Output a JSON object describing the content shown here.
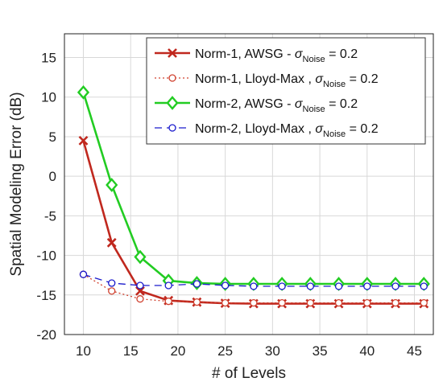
{
  "chart_data": {
    "type": "line",
    "xlabel": "# of Levels",
    "ylabel": "Spatial Modeling Error (dB)",
    "xlim": [
      8,
      47
    ],
    "ylim": [
      -20,
      18
    ],
    "xticks": [
      10,
      15,
      20,
      25,
      30,
      35,
      40,
      45
    ],
    "yticks": [
      -20,
      -15,
      -10,
      -5,
      0,
      5,
      10,
      15
    ],
    "grid": true,
    "legend_position": "top-right",
    "x": [
      10,
      13,
      16,
      19,
      22,
      25,
      28,
      31,
      34,
      37,
      40,
      43,
      46
    ],
    "series": [
      {
        "name_main": "Norm-1, AWSG - ",
        "name_sub": "Noise",
        "name_tail": " = 0.2",
        "color": "#c0281e",
        "style": "solid",
        "marker": "x",
        "values": [
          4.5,
          -8.4,
          -14.5,
          -15.7,
          -15.9,
          -16.05,
          -16.1,
          -16.1,
          -16.1,
          -16.1,
          -16.1,
          -16.1,
          -16.1
        ]
      },
      {
        "name_main": "Norm-1, Lloyd-Max , ",
        "name_sub": "Noise",
        "name_tail": " = 0.2",
        "color": "#d0402e",
        "style": "dotted",
        "marker": "circle",
        "values": [
          -12.4,
          -14.5,
          -15.5,
          -15.8,
          -15.9,
          -16.0,
          -16.0,
          -16.0,
          -16.0,
          -16.0,
          -16.0,
          -16.0,
          -16.0
        ]
      },
      {
        "name_main": "Norm-2, AWSG - ",
        "name_sub": "Noise",
        "name_tail": " = 0.2",
        "color": "#22cc22",
        "style": "solid",
        "marker": "diamond",
        "values": [
          10.6,
          -1.1,
          -10.2,
          -13.2,
          -13.5,
          -13.6,
          -13.6,
          -13.6,
          -13.6,
          -13.6,
          -13.6,
          -13.6,
          -13.6
        ]
      },
      {
        "name_main": "Norm-2, Lloyd-Max , ",
        "name_sub": "Noise",
        "name_tail": " = 0.2",
        "color": "#1a1acc",
        "style": "dashed",
        "marker": "circle",
        "values": [
          -12.4,
          -13.5,
          -13.8,
          -13.8,
          -13.6,
          -13.8,
          -13.9,
          -13.9,
          -13.9,
          -13.9,
          -13.9,
          -13.9,
          -13.9
        ]
      }
    ]
  }
}
